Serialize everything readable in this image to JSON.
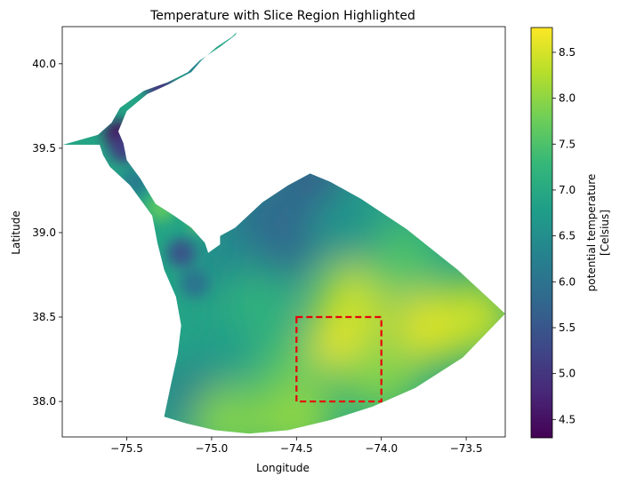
{
  "chart_data": {
    "type": "heatmap",
    "title": "Temperature with Slice Region Highlighted",
    "xlabel": "Longitude",
    "ylabel": "Latitude",
    "xlim": [
      -75.88,
      -73.27
    ],
    "ylim": [
      37.79,
      40.22
    ],
    "x_ticks": [
      -75.5,
      -75.0,
      -74.5,
      -74.0,
      -73.5
    ],
    "x_tick_labels": [
      "−75.5",
      "−75.0",
      "−74.5",
      "−74.0",
      "−73.5"
    ],
    "y_ticks": [
      38.0,
      38.5,
      39.0,
      39.5,
      40.0
    ],
    "y_tick_labels": [
      "38.0",
      "38.5",
      "39.0",
      "39.5",
      "40.0"
    ],
    "colorbar": {
      "label_line1": "potential temperature",
      "label_line2": "[Celsius]",
      "range": [
        4.3,
        8.77
      ],
      "ticks": [
        4.5,
        5.0,
        5.5,
        6.0,
        6.5,
        7.0,
        7.5,
        8.0,
        8.5
      ],
      "tick_labels": [
        "4.5",
        "5.0",
        "5.5",
        "6.0",
        "6.5",
        "7.0",
        "7.5",
        "8.0",
        "8.5"
      ],
      "colormap": "viridis"
    },
    "slice_region": {
      "lon": [
        -74.5,
        -74.0
      ],
      "lat": [
        38.0,
        38.5
      ],
      "color": "#e8000b",
      "style": "dashed"
    },
    "domain_outline": [
      [
        -75.28,
        37.91
      ],
      [
        -75.15,
        37.87
      ],
      [
        -74.98,
        37.83
      ],
      [
        -74.78,
        37.81
      ],
      [
        -74.55,
        37.83
      ],
      [
        -74.3,
        37.89
      ],
      [
        -74.05,
        37.97
      ],
      [
        -73.8,
        38.08
      ],
      [
        -73.52,
        38.26
      ],
      [
        -73.27,
        38.52
      ],
      [
        -73.55,
        38.78
      ],
      [
        -73.85,
        39.02
      ],
      [
        -74.12,
        39.2
      ],
      [
        -74.3,
        39.3
      ],
      [
        -74.42,
        39.35
      ],
      [
        -74.55,
        39.28
      ],
      [
        -74.7,
        39.18
      ],
      [
        -74.86,
        39.03
      ],
      [
        -74.95,
        38.98
      ],
      [
        -74.95,
        38.93
      ],
      [
        -75.02,
        38.88
      ],
      [
        -75.04,
        38.94
      ],
      [
        -75.12,
        39.03
      ],
      [
        -75.22,
        39.1
      ],
      [
        -75.33,
        39.17
      ],
      [
        -75.42,
        39.32
      ],
      [
        -75.5,
        39.43
      ],
      [
        -75.52,
        39.53
      ],
      [
        -75.55,
        39.6
      ],
      [
        -75.5,
        39.72
      ],
      [
        -75.38,
        39.82
      ],
      [
        -75.25,
        39.88
      ],
      [
        -75.12,
        39.95
      ],
      [
        -75.06,
        40.02
      ],
      [
        -74.97,
        40.1
      ],
      [
        -74.88,
        40.16
      ],
      [
        -74.85,
        40.19
      ],
      [
        -74.86,
        40.17
      ],
      [
        -74.95,
        40.1
      ],
      [
        -75.07,
        40.02
      ],
      [
        -75.14,
        39.95
      ],
      [
        -75.26,
        39.89
      ],
      [
        -75.4,
        39.84
      ],
      [
        -75.54,
        39.74
      ],
      [
        -75.59,
        39.65
      ],
      [
        -75.67,
        39.58
      ],
      [
        -75.88,
        39.52
      ],
      [
        -75.66,
        39.52
      ],
      [
        -75.64,
        39.46
      ],
      [
        -75.6,
        39.39
      ],
      [
        -75.48,
        39.28
      ],
      [
        -75.35,
        39.1
      ],
      [
        -75.32,
        38.94
      ],
      [
        -75.28,
        38.78
      ],
      [
        -75.21,
        38.62
      ],
      [
        -75.18,
        38.45
      ],
      [
        -75.2,
        38.28
      ],
      [
        -75.24,
        38.1
      ]
    ],
    "bay_temperature_points": [
      {
        "lon": -75.55,
        "lat": 39.58,
        "t": 4.4
      },
      {
        "lon": -75.52,
        "lat": 39.5,
        "t": 5.1
      },
      {
        "lon": -75.3,
        "lat": 39.85,
        "t": 5.0
      },
      {
        "lon": -75.1,
        "lat": 39.98,
        "t": 6.3
      },
      {
        "lon": -75.45,
        "lat": 39.3,
        "t": 6.2
      },
      {
        "lon": -75.3,
        "lat": 39.15,
        "t": 7.6
      },
      {
        "lon": -75.05,
        "lat": 39.1,
        "t": 8.0
      },
      {
        "lon": -75.18,
        "lat": 38.88,
        "t": 5.5
      },
      {
        "lon": -75.1,
        "lat": 38.7,
        "t": 6.0
      }
    ],
    "shelf_temperature_points": [
      {
        "lon": -74.4,
        "lat": 39.3,
        "t": 5.6
      },
      {
        "lon": -74.72,
        "lat": 39.12,
        "t": 6.0
      },
      {
        "lon": -74.6,
        "lat": 38.95,
        "t": 5.8
      },
      {
        "lon": -74.9,
        "lat": 38.8,
        "t": 6.4
      },
      {
        "lon": -74.75,
        "lat": 38.55,
        "t": 7.2
      },
      {
        "lon": -74.95,
        "lat": 38.3,
        "t": 6.8
      },
      {
        "lon": -75.1,
        "lat": 38.0,
        "t": 6.2
      },
      {
        "lon": -74.5,
        "lat": 38.15,
        "t": 7.6
      },
      {
        "lon": -74.2,
        "lat": 38.4,
        "t": 8.7
      },
      {
        "lon": -74.15,
        "lat": 38.6,
        "t": 8.4
      },
      {
        "lon": -74.0,
        "lat": 38.15,
        "t": 7.9
      },
      {
        "lon": -73.7,
        "lat": 38.45,
        "t": 8.6
      },
      {
        "lon": -73.45,
        "lat": 38.5,
        "t": 8.4
      },
      {
        "lon": -73.9,
        "lat": 38.85,
        "t": 7.5
      },
      {
        "lon": -74.2,
        "lat": 39.05,
        "t": 6.6
      },
      {
        "lon": -74.5,
        "lat": 37.9,
        "t": 8.0
      },
      {
        "lon": -74.9,
        "lat": 37.88,
        "t": 7.9
      }
    ]
  }
}
